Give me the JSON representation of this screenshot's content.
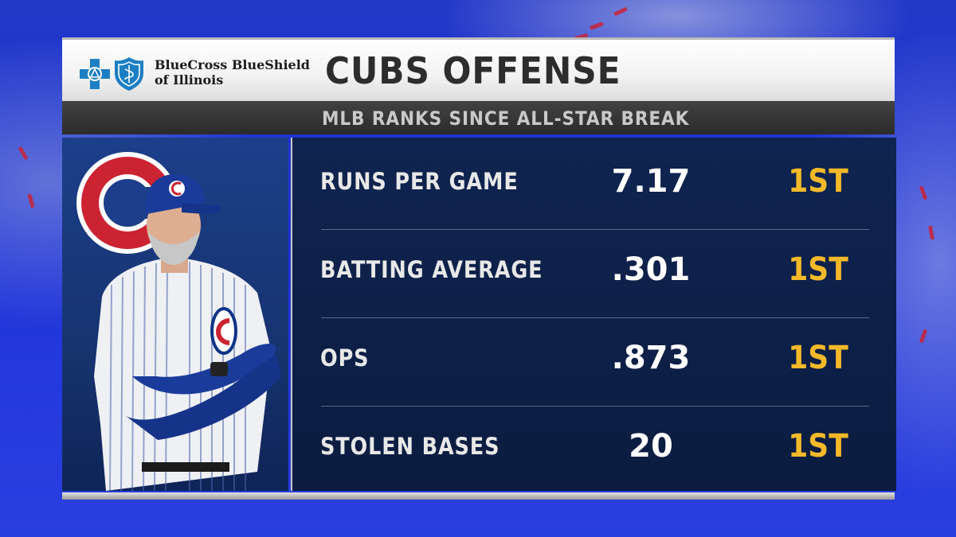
{
  "sponsor": {
    "line1": "BlueCross BlueShield",
    "line2": "of Illinois"
  },
  "title": "CUBS OFFENSE",
  "subtitle": "MLB RANKS SINCE ALL-STAR BREAK",
  "stats": [
    {
      "label": "RUNS PER GAME",
      "value": "7.17",
      "rank": "1ST"
    },
    {
      "label": "BATTING AVERAGE",
      "value": ".301",
      "rank": "1ST"
    },
    {
      "label": "OPS",
      "value": ".873",
      "rank": "1ST"
    },
    {
      "label": "STOLEN BASES",
      "value": "20",
      "rank": "1ST"
    }
  ],
  "colors": {
    "rank": "#f3b928",
    "panel": "#0f2450",
    "cubs_red": "#cc2332",
    "cubs_blue": "#0e3386",
    "sponsor_blue": "#1c7fc4"
  },
  "icons": [
    "bluecross-icon",
    "blueshield-icon",
    "cubs-logo",
    "player-photo"
  ]
}
